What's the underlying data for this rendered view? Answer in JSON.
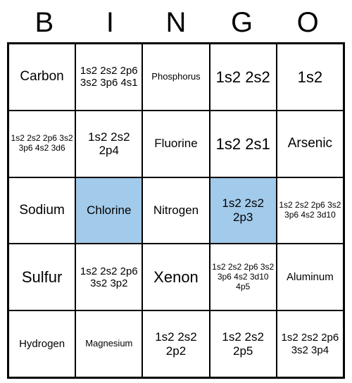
{
  "header": {
    "letters": [
      "B",
      "I",
      "N",
      "G",
      "O"
    ]
  },
  "colors": {
    "cell_bg": "#ffffff",
    "highlight_bg": "#a2caea",
    "border": "#000000",
    "text": "#000000"
  },
  "grid": {
    "rows": 5,
    "cols": 5,
    "cells": [
      [
        {
          "text": "Carbon",
          "fontsize": 19,
          "highlighted": false
        },
        {
          "text": "1s2 2s2 2p6 3s2 3p6 4s1",
          "fontsize": 15,
          "highlighted": false
        },
        {
          "text": "Phosphorus",
          "fontsize": 13,
          "highlighted": false
        },
        {
          "text": "1s2 2s2",
          "fontsize": 22,
          "highlighted": false
        },
        {
          "text": "1s2",
          "fontsize": 22,
          "highlighted": false
        }
      ],
      [
        {
          "text": "1s2 2s2 2p6 3s2 3p6 4s2 3d6",
          "fontsize": 12,
          "highlighted": false
        },
        {
          "text": "1s2 2s2 2p4",
          "fontsize": 17,
          "highlighted": false
        },
        {
          "text": "Fluorine",
          "fontsize": 17,
          "highlighted": false
        },
        {
          "text": "1s2 2s1",
          "fontsize": 22,
          "highlighted": false
        },
        {
          "text": "Arsenic",
          "fontsize": 19,
          "highlighted": false
        }
      ],
      [
        {
          "text": "Sodium",
          "fontsize": 19,
          "highlighted": false
        },
        {
          "text": "Chlorine",
          "fontsize": 17,
          "highlighted": true
        },
        {
          "text": "Nitrogen",
          "fontsize": 17,
          "highlighted": false
        },
        {
          "text": "1s2 2s2 2p3",
          "fontsize": 17,
          "highlighted": true
        },
        {
          "text": "1s2 2s2 2p6 3s2 3p6 4s2 3d10",
          "fontsize": 12,
          "highlighted": false
        }
      ],
      [
        {
          "text": "Sulfur",
          "fontsize": 22,
          "highlighted": false
        },
        {
          "text": "1s2 2s2 2p6 3s2 3p2",
          "fontsize": 15,
          "highlighted": false
        },
        {
          "text": "Xenon",
          "fontsize": 22,
          "highlighted": false
        },
        {
          "text": "1s2 2s2 2p6 3s2 3p6 4s2 3d10 4p5",
          "fontsize": 12,
          "highlighted": false
        },
        {
          "text": "Aluminum",
          "fontsize": 15,
          "highlighted": false
        }
      ],
      [
        {
          "text": "Hydrogen",
          "fontsize": 15,
          "highlighted": false
        },
        {
          "text": "Magnesium",
          "fontsize": 13,
          "highlighted": false
        },
        {
          "text": "1s2 2s2 2p2",
          "fontsize": 17,
          "highlighted": false
        },
        {
          "text": "1s2 2s2 2p5",
          "fontsize": 17,
          "highlighted": false
        },
        {
          "text": "1s2 2s2 2p6 3s2 3p4",
          "fontsize": 15,
          "highlighted": false
        }
      ]
    ]
  }
}
